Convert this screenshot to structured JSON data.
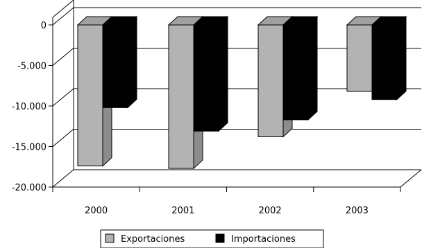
{
  "chart_data": {
    "type": "bar",
    "categories": [
      "2000",
      "2001",
      "2002",
      "2003"
    ],
    "series": [
      {
        "name": "Exportaciones",
        "values": [
          -17400,
          -17700,
          -13800,
          -8200
        ],
        "color": "#b3b3b3"
      },
      {
        "name": "Importaciones",
        "values": [
          -10200,
          -13100,
          -11700,
          -9200
        ],
        "color": "#000000"
      }
    ],
    "yticks": [
      {
        "value": 0,
        "label": "0"
      },
      {
        "value": -5000,
        "label": "-5.000"
      },
      {
        "value": -10000,
        "label": "-10.000"
      },
      {
        "value": -15000,
        "label": "-15.000"
      },
      {
        "value": -20000,
        "label": "-20.000"
      }
    ],
    "ylim": [
      -20000,
      0
    ],
    "title": "",
    "xlabel": "",
    "ylabel": "",
    "grid": true,
    "three_d": true,
    "legend_position": "bottom"
  }
}
